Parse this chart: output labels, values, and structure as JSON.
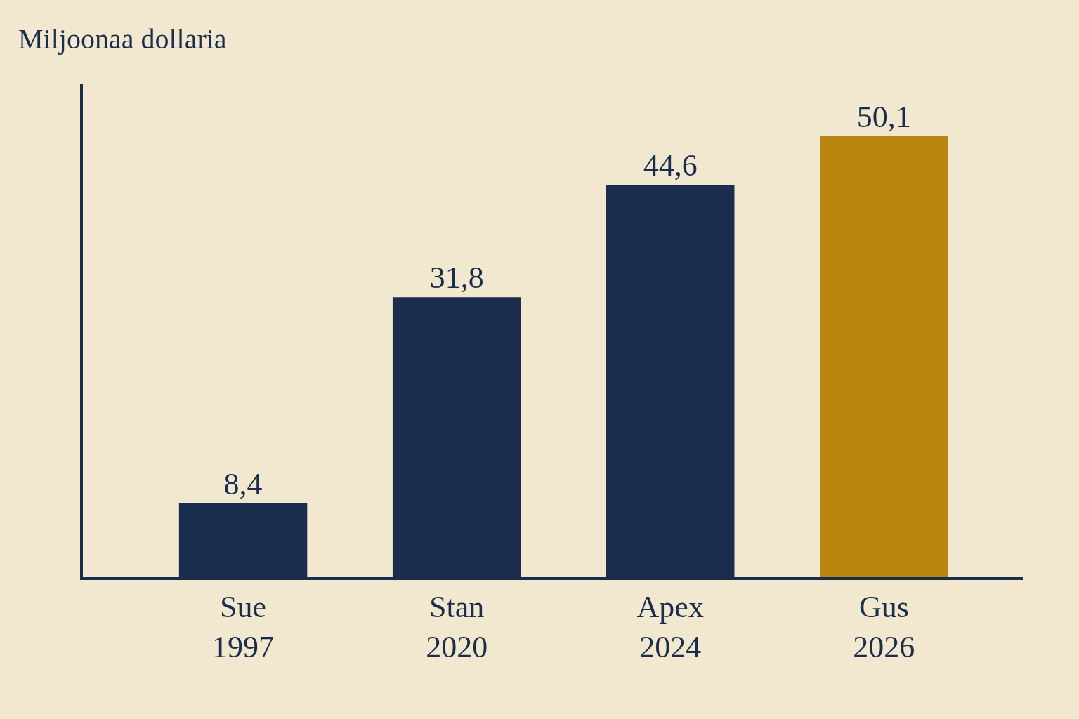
{
  "chart_data": {
    "type": "bar",
    "ylabel": "Miljoonaa dollaria",
    "categories": [
      "Sue\n1997",
      "Stan\n2020",
      "Apex\n2024",
      "Gus\n2026"
    ],
    "values": [
      8.4,
      31.8,
      44.6,
      50.1
    ],
    "colors": [
      "#1b2d4d",
      "#1b2d4d",
      "#1b2d4d",
      "#b8860f"
    ],
    "value_labels": [
      "8,4",
      "31,8",
      "44,6",
      "50,1"
    ],
    "ylim": [
      0,
      56
    ],
    "grid": false,
    "legend": false
  }
}
